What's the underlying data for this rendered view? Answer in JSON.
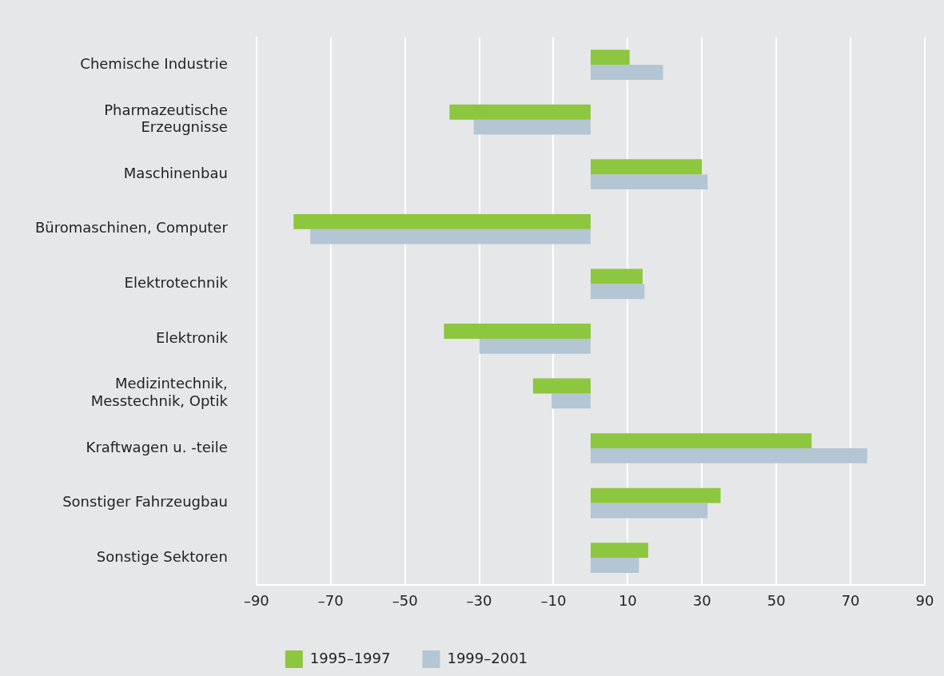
{
  "chart_data": {
    "type": "bar",
    "orientation": "horizontal",
    "categories": [
      "Chemische Industrie",
      "Pharmazeutische\nErzeugnisse",
      "Maschinenbau",
      "Büromaschinen, Computer",
      "Elektrotechnik",
      "Elektronik",
      "Medizintechnik,\nMesstechnik, Optik",
      "Kraftwagen u. -teile",
      "Sonstiger Fahrzeugbau",
      "Sonstige Sektoren"
    ],
    "series": [
      {
        "name": "1995–1997",
        "color": "#8dc63f",
        "values": [
          10.5,
          -38,
          30,
          -80,
          14,
          -39.5,
          -15.5,
          59.5,
          35,
          15.5
        ]
      },
      {
        "name": "1999–2001",
        "color": "#b4c5d3",
        "values": [
          19.5,
          -31.5,
          31.5,
          -75.5,
          14.5,
          -30,
          -10.5,
          74.5,
          31.5,
          13
        ]
      }
    ],
    "xlim": [
      -90,
      90
    ],
    "xticks": [
      {
        "value": -90,
        "label": "–90"
      },
      {
        "value": -70,
        "label": "–70"
      },
      {
        "value": -50,
        "label": "–50"
      },
      {
        "value": -30,
        "label": "–30"
      },
      {
        "value": -10,
        "label": "–10"
      },
      10,
      30,
      50,
      70,
      90
    ],
    "grid": "x",
    "legend": "bottom left"
  }
}
